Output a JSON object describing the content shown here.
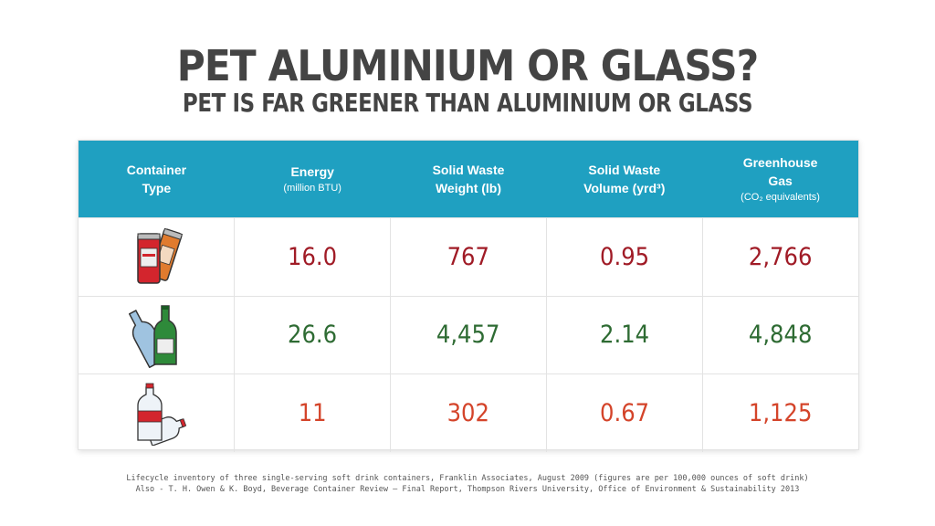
{
  "title": "PET ALUMINIUM OR GLASS?",
  "subtitle": "PET IS FAR GREENER THAN ALUMINIUM OR GLASS",
  "table": {
    "headers": [
      {
        "main": "Container Type",
        "sub": ""
      },
      {
        "main": "Energy",
        "sub": "(million BTU)"
      },
      {
        "main": "Solid Waste Weight (lb)",
        "sub": ""
      },
      {
        "main": "Solid Waste Volume (yrd³)",
        "sub": ""
      },
      {
        "main": "Greenhouse Gas",
        "sub": "(CO₂ equivalents)"
      }
    ],
    "rows": [
      {
        "icon": "aluminium-cans-icon",
        "values": [
          "16.0",
          "767",
          "0.95",
          "2,766"
        ],
        "color": "#a01b26"
      },
      {
        "icon": "glass-bottles-icon",
        "values": [
          "26.6",
          "4,457",
          "2.14",
          "4,848"
        ],
        "color": "#2e6b33"
      },
      {
        "icon": "pet-bottles-icon",
        "values": [
          "11",
          "302",
          "0.67",
          "1,125"
        ],
        "color": "#d4442a"
      }
    ]
  },
  "footer": {
    "line1": "Lifecycle inventory of three single-serving soft drink containers, Franklin Associates, August 2009 (figures are per 100,000 ounces of soft drink)",
    "line2": "Also - T. H. Owen & K. Boyd, Beverage Container Review – Final Report, Thompson Rivers University, Office of Environment & Sustainability 2013"
  }
}
